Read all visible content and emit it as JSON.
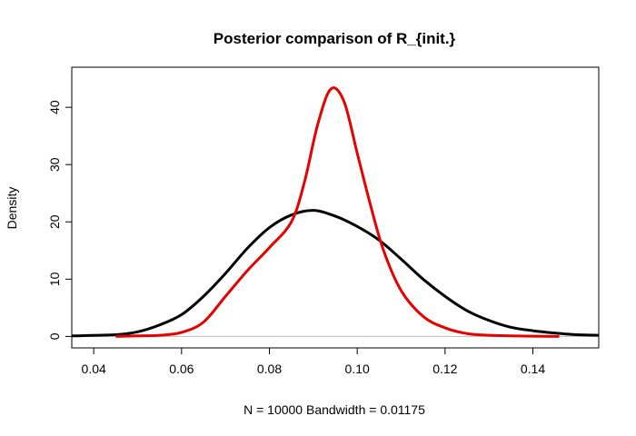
{
  "chart_data": {
    "type": "line",
    "title": "Posterior comparison of R_{init.}",
    "xlabel": "N = 10000   Bandwidth = 0.01175",
    "ylabel": "Density",
    "xlim": [
      0.035,
      0.155
    ],
    "ylim": [
      -2,
      47
    ],
    "x_ticks": [
      "0.04",
      "0.06",
      "0.08",
      "0.10",
      "0.12",
      "0.14"
    ],
    "x_tick_values": [
      0.04,
      0.06,
      0.08,
      0.1,
      0.12,
      0.14
    ],
    "y_ticks": [
      "0",
      "10",
      "20",
      "30",
      "40"
    ],
    "y_tick_values": [
      0,
      10,
      20,
      30,
      40
    ],
    "baseline": 0,
    "grid": false,
    "series": [
      {
        "color": "#000000",
        "x": [
          0.035,
          0.045,
          0.05,
          0.055,
          0.06,
          0.065,
          0.07,
          0.075,
          0.08,
          0.085,
          0.09,
          0.095,
          0.1,
          0.105,
          0.11,
          0.115,
          0.12,
          0.125,
          0.13,
          0.135,
          0.14,
          0.145,
          0.15,
          0.155
        ],
        "y": [
          0.1,
          0.3,
          0.8,
          2.0,
          3.8,
          7.0,
          11.0,
          15.4,
          19.0,
          21.2,
          22.0,
          21.0,
          19.2,
          16.8,
          13.5,
          10.0,
          7.0,
          4.5,
          2.8,
          1.6,
          1.0,
          0.6,
          0.3,
          0.2
        ]
      },
      {
        "color": "#e60000",
        "x": [
          0.045,
          0.05,
          0.055,
          0.06,
          0.065,
          0.07,
          0.075,
          0.08,
          0.085,
          0.088,
          0.091,
          0.094,
          0.097,
          0.1,
          0.103,
          0.106,
          0.11,
          0.115,
          0.12,
          0.125,
          0.13,
          0.135,
          0.14,
          0.146
        ],
        "y": [
          0.0,
          0.1,
          0.2,
          0.7,
          2.5,
          7.0,
          11.5,
          15.5,
          20.0,
          27.0,
          37.0,
          43.2,
          41.0,
          32.0,
          23.0,
          15.0,
          8.0,
          3.5,
          1.5,
          0.5,
          0.2,
          0.1,
          0.05,
          0.0
        ]
      }
    ]
  }
}
